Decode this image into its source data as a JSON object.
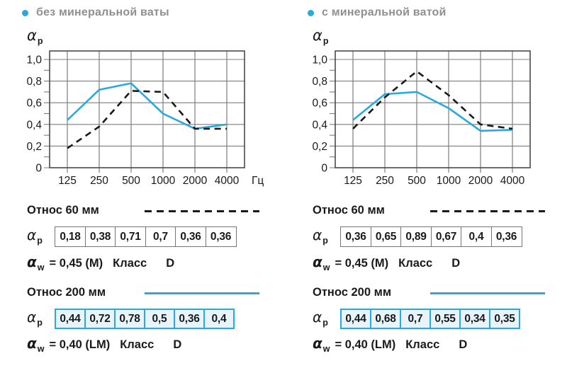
{
  "colors": {
    "accent_cyan": "#29a9e0",
    "cyan_cell_fill": "#e8f4fb",
    "header_gray": "#8f8f8f",
    "text_dark": "#1a1a1a",
    "grid_gray": "#7d7d7d",
    "plot_border": "#4a4a4a",
    "gray_cell_border": "#757575"
  },
  "chart_data": [
    {
      "type": "line",
      "title": "без минеральной ваты",
      "x_categories": [
        "125",
        "250",
        "500",
        "1000",
        "2000",
        "4000"
      ],
      "x_unit": "Гц",
      "y_axis_symbol": "αp",
      "y_ticks": [
        "0",
        "0,2",
        "0,4",
        "0,6",
        "0,8",
        "1,0"
      ],
      "ylim": [
        0,
        1.08
      ],
      "grid": true,
      "legend_position": "below",
      "series": [
        {
          "name": "Относ 60 мм",
          "style": "dashed",
          "color": "#1a1a1a",
          "values": [
            0.18,
            0.38,
            0.71,
            0.7,
            0.36,
            0.36
          ]
        },
        {
          "name": "Относ 200 мм",
          "style": "solid",
          "color": "#29a9e0",
          "values": [
            0.44,
            0.72,
            0.78,
            0.5,
            0.36,
            0.4
          ]
        }
      ]
    },
    {
      "type": "line",
      "title": "с минеральной ватой",
      "x_categories": [
        "125",
        "250",
        "500",
        "1000",
        "2000",
        "4000"
      ],
      "x_unit": "",
      "y_axis_symbol": "αp",
      "y_ticks": [
        "0",
        "0,2",
        "0,4",
        "0,6",
        "0,8",
        "1,0"
      ],
      "ylim": [
        0,
        1.08
      ],
      "grid": true,
      "legend_position": "below",
      "series": [
        {
          "name": "Относ 60 мм",
          "style": "dashed",
          "color": "#1a1a1a",
          "values": [
            0.36,
            0.65,
            0.89,
            0.67,
            0.4,
            0.36
          ]
        },
        {
          "name": "Относ 200 мм",
          "style": "solid",
          "color": "#29a9e0",
          "values": [
            0.44,
            0.68,
            0.7,
            0.55,
            0.34,
            0.35
          ]
        }
      ]
    }
  ],
  "panels": [
    {
      "header": "без минеральной ваты",
      "alpha_symbol": "α",
      "alpha_sub_p": "p",
      "alpha_sub_w": "w",
      "sections": [
        {
          "title": "Относ 60 мм",
          "line_style": "dashed",
          "values": [
            "0,18",
            "0,38",
            "0,71",
            "0,7",
            "0,36",
            "0,36"
          ],
          "aw_text": "= 0,45 (M)",
          "class_label": "Класс",
          "class_value": "D"
        },
        {
          "title": "Относ 200 мм",
          "line_style": "solid",
          "values": [
            "0,44",
            "0,72",
            "0,78",
            "0,5",
            "0,36",
            "0,4"
          ],
          "aw_text": "= 0,40 (LM)",
          "class_label": "Класс",
          "class_value": "D"
        }
      ]
    },
    {
      "header": "с минеральной ватой",
      "alpha_symbol": "α",
      "alpha_sub_p": "p",
      "alpha_sub_w": "w",
      "sections": [
        {
          "title": "Относ 60 мм",
          "line_style": "dashed",
          "values": [
            "0,36",
            "0,65",
            "0,89",
            "0,67",
            "0,4",
            "0,36"
          ],
          "aw_text": "= 0,45 (M)",
          "class_label": "Класс",
          "class_value": "D"
        },
        {
          "title": "Относ 200 мм",
          "line_style": "solid",
          "values": [
            "0,44",
            "0,68",
            "0,7",
            "0,55",
            "0,34",
            "0,35"
          ],
          "aw_text": "= 0,40 (LM)",
          "class_label": "Класс",
          "class_value": "D"
        }
      ]
    }
  ]
}
